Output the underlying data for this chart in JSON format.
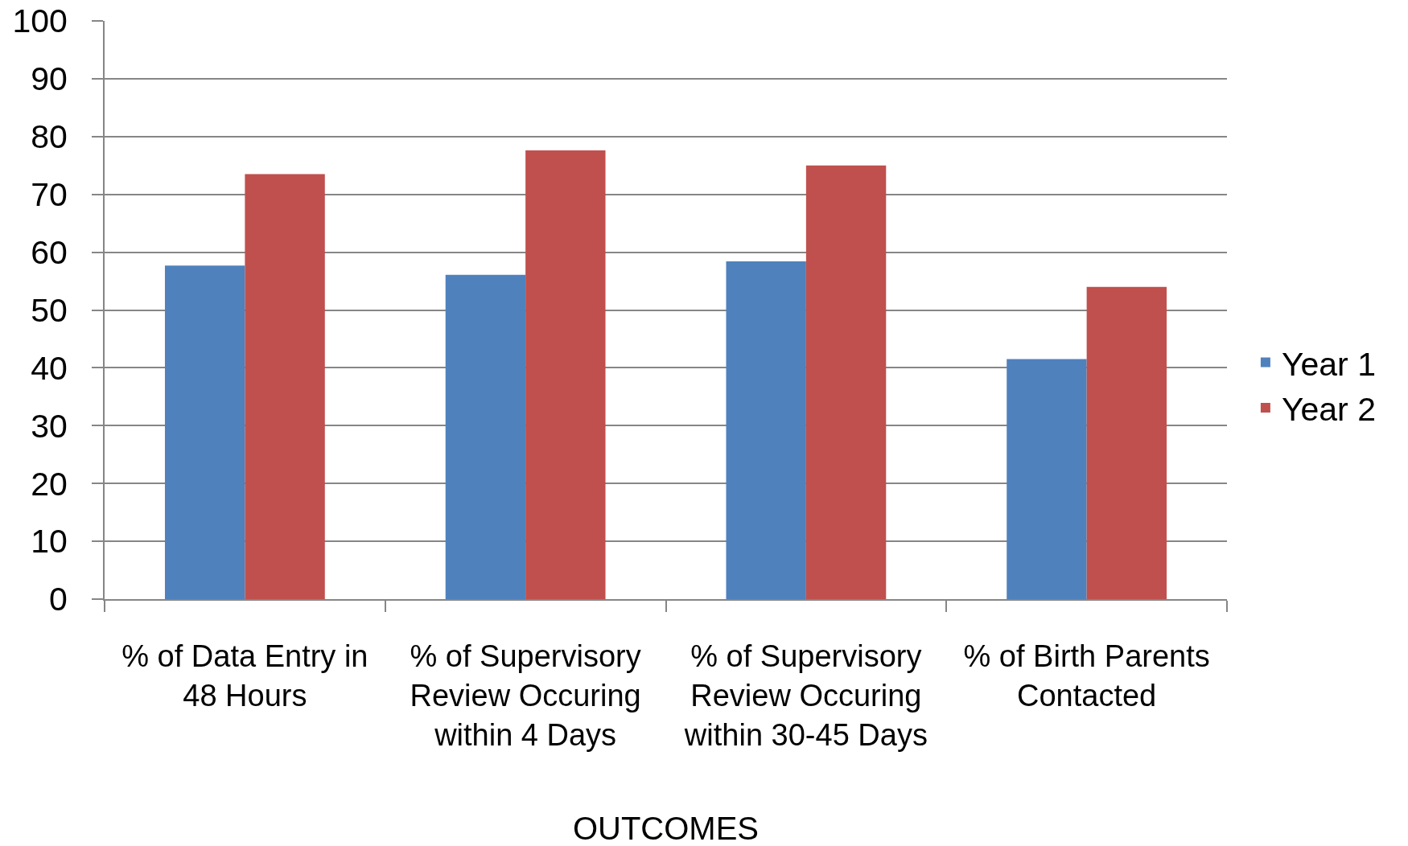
{
  "chart_data": {
    "type": "bar",
    "xlabel": "OUTCOMES",
    "categories": [
      "% of Data Entry in 48 Hours",
      "% of Supervisory Review Occuring within 4 Days",
      "% of Supervisory Review Occuring within 30-45 Days",
      "% of Birth Parents Contacted"
    ],
    "series": [
      {
        "name": "Year 1",
        "color": "#4f81bd",
        "values": [
          57.7,
          56.1,
          58.4,
          41.5
        ]
      },
      {
        "name": "Year 2",
        "color": "#c0504d",
        "values": [
          73.5,
          77.6,
          75.0,
          54.0
        ]
      }
    ],
    "ylim": [
      0,
      100
    ],
    "yticks": [
      0,
      10,
      20,
      30,
      40,
      50,
      60,
      70,
      80,
      90,
      100
    ],
    "grid": "y",
    "legend": "right"
  }
}
